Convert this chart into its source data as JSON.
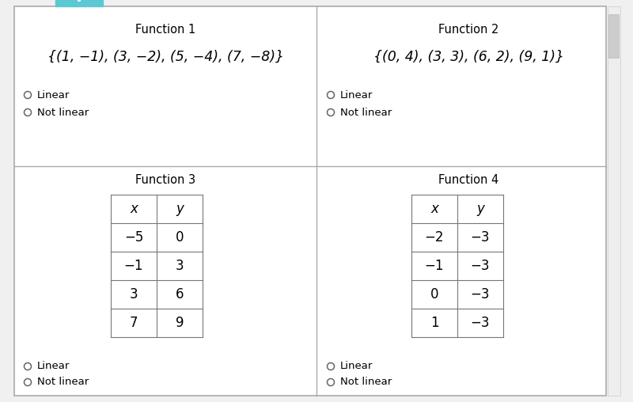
{
  "bg_color": "#f0f0f0",
  "panel_color": "#ffffff",
  "border_color": "#bbbbbb",
  "tab_color": "#5bc8d4",
  "tab_text": "v",
  "func1_title": "Function 1",
  "func1_set": "{(1, −1), (3, −2), (5, −4), (7, −8)}",
  "func2_title": "Function 2",
  "func2_set": "{(0, 4), (3, 3), (6, 2), (9, 1)}",
  "func3_title": "Function 3",
  "func3_data": [
    [
      "x",
      "y"
    ],
    [
      "−5",
      "0"
    ],
    [
      "−1",
      "3"
    ],
    [
      "3",
      "6"
    ],
    [
      "7",
      "9"
    ]
  ],
  "func4_title": "Function 4",
  "func4_data": [
    [
      "x",
      "y"
    ],
    [
      "−2",
      "−3"
    ],
    [
      "−1",
      "−3"
    ],
    [
      "0",
      "−3"
    ],
    [
      "1",
      "−3"
    ]
  ],
  "radio_options": [
    "Linear",
    "Not linear"
  ],
  "title_fontsize": 10.5,
  "set_fontsize": 12.5,
  "radio_fontsize": 9.5,
  "table_fontsize": 12
}
